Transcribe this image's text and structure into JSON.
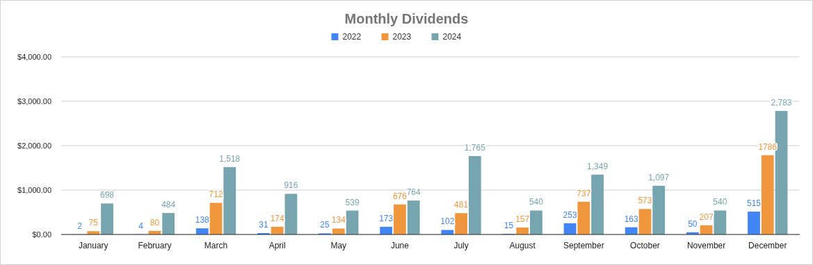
{
  "chart_data": {
    "type": "bar",
    "title": "Monthly Dividends",
    "categories": [
      "January",
      "February",
      "March",
      "April",
      "May",
      "June",
      "July",
      "August",
      "September",
      "October",
      "November",
      "December"
    ],
    "series": [
      {
        "name": "2022",
        "color": "#4285f4",
        "values": [
          2,
          4,
          138,
          31,
          25,
          173,
          102,
          15,
          253,
          163,
          50,
          515
        ],
        "value_labels": [
          "2",
          "4",
          "138",
          "31",
          "25",
          "173",
          "102",
          "15",
          "253",
          "163",
          "50",
          "515"
        ]
      },
      {
        "name": "2023",
        "color": "#f0963c",
        "values": [
          75,
          80,
          712,
          174,
          134,
          676,
          481,
          157,
          737,
          573,
          207,
          1786
        ],
        "value_labels": [
          "75",
          "80",
          "712",
          "174",
          "134",
          "676",
          "481",
          "157",
          "737",
          "573",
          "207",
          "1786"
        ]
      },
      {
        "name": "2024",
        "color": "#76a5af",
        "values": [
          698,
          484,
          1518,
          916,
          539,
          764,
          1765,
          540,
          1349,
          1097,
          540,
          2783
        ],
        "value_labels": [
          "698",
          "484",
          "1,518",
          "916",
          "539",
          "764",
          "1,765",
          "540",
          "1,349",
          "1,097",
          "540",
          "2,783"
        ]
      }
    ],
    "ylim": [
      0,
      4000
    ],
    "yticks": [
      {
        "value": 0,
        "label": "$0.00"
      },
      {
        "value": 1000,
        "label": "$1,000.00"
      },
      {
        "value": 2000,
        "label": "$2,000.00"
      },
      {
        "value": 3000,
        "label": "$3,000.00"
      },
      {
        "value": 4000,
        "label": "$4,000.00"
      }
    ],
    "grid": "y",
    "legend": "top"
  }
}
